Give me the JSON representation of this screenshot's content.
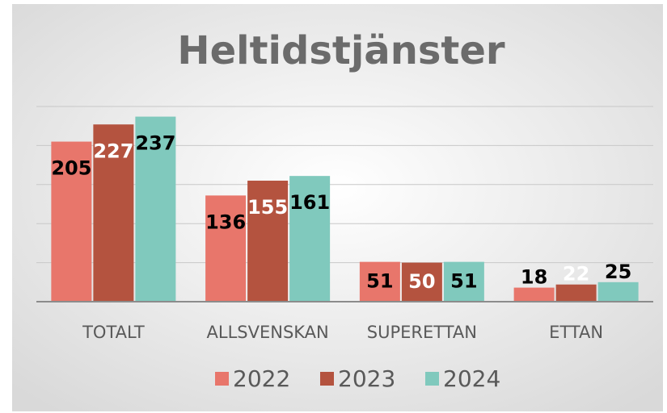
{
  "chart_data": {
    "type": "bar",
    "title": "Heltidstjänster",
    "categories": [
      "TOTALT",
      "ALLSVENSKAN",
      "SUPERETTAN",
      "ETTAN"
    ],
    "series": [
      {
        "name": "2022",
        "color": "#e8766b",
        "label_color": "#000000",
        "values": [
          205,
          136,
          51,
          18
        ]
      },
      {
        "name": "2023",
        "color": "#b4533f",
        "label_color": "#ffffff",
        "values": [
          227,
          155,
          50,
          22
        ]
      },
      {
        "name": "2024",
        "color": "#80c9bd",
        "label_color": "#000000",
        "values": [
          237,
          161,
          51,
          25
        ]
      }
    ],
    "ylim": [
      0,
      250
    ],
    "yticks": [
      0,
      50,
      100,
      150,
      200,
      250
    ],
    "grid": true,
    "legend": "bottom"
  }
}
